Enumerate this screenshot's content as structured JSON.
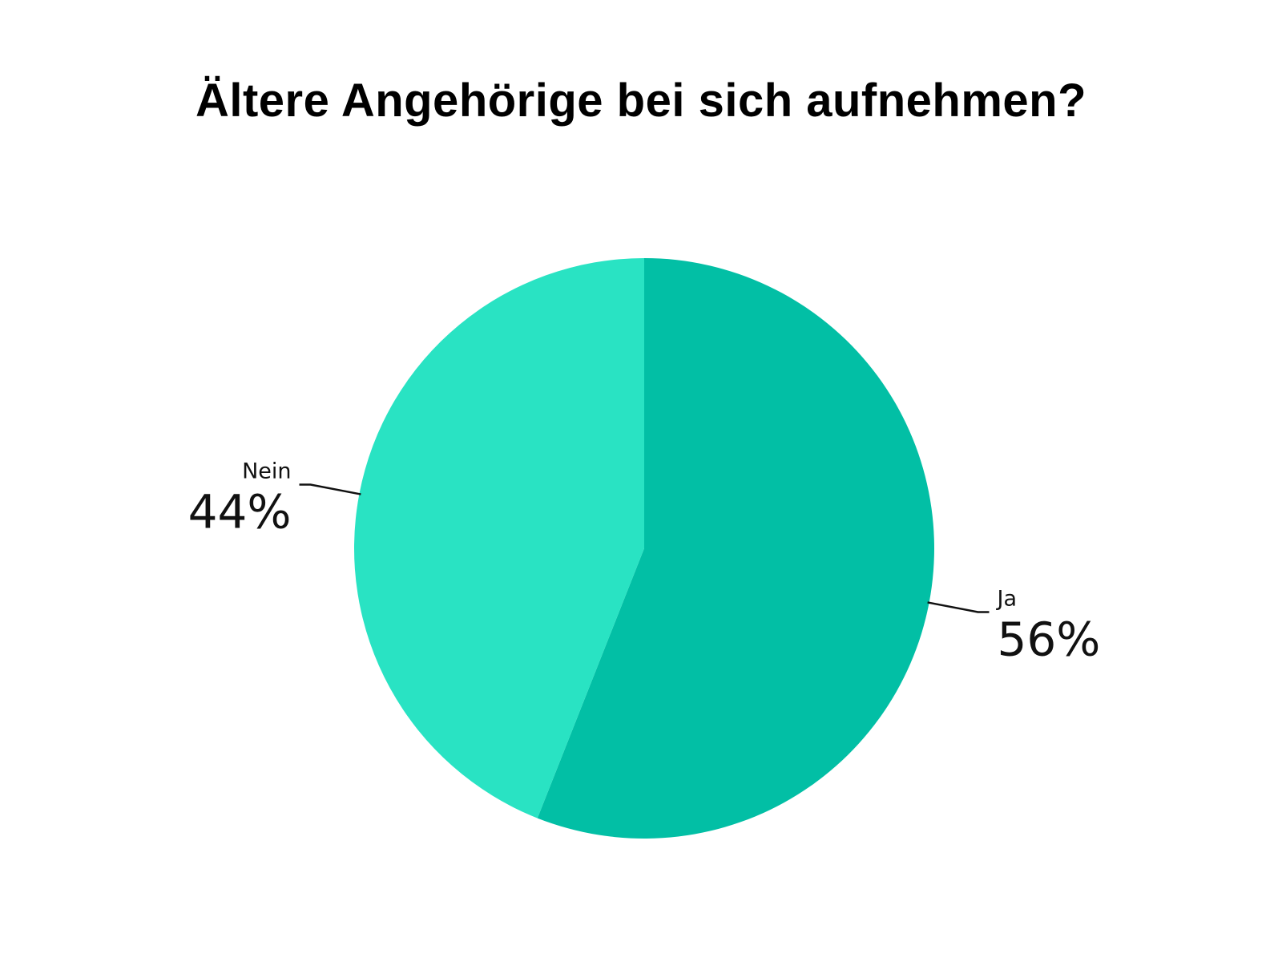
{
  "title": "Ältere Angehörige bei sich aufnehmen?",
  "chart_data": {
    "type": "pie",
    "title": "Ältere Angehörige bei sich aufnehmen?",
    "start_angle": "12 o'clock",
    "direction": "clockwise",
    "slices": [
      {
        "label": "Ja",
        "value": 56,
        "display": "56%",
        "color": "#02BFA5"
      },
      {
        "label": "Nein",
        "value": 44,
        "display": "44%",
        "color": "#29E3C3"
      }
    ]
  }
}
